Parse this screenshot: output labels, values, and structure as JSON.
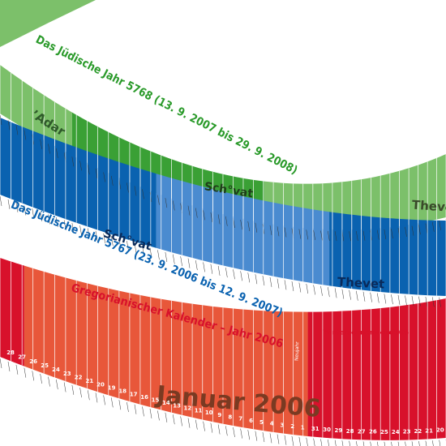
{
  "labels": {
    "jewish_5768": "Das Jüdische Jahr 5768 (13. 9. 2007 bis 29. 9. 2008)",
    "adar": "ʼAdar",
    "schvat_green": "Sch°vat",
    "thevet_green": "Thevet",
    "jewish_5767": "Das Jüdische Jahr 5767 (23. 9. 2006 bis 12. 9. 2007)",
    "schvat_blue": "Sch°vat",
    "thevet_blue": "Thevet",
    "gregorian": "Gregorianischer Kalender – Jahr 2006",
    "wintersonnenwende": "Wintersonnenwende",
    "wintersonnenwende_year": "2006",
    "januar": "Januar 2006",
    "neujahr": "Neujahr"
  },
  "january_days": [
    28,
    27,
    26,
    25,
    24,
    23,
    22,
    21,
    20,
    19,
    18,
    17,
    16,
    15,
    14,
    13,
    12,
    11,
    10,
    9,
    8,
    7,
    6,
    5,
    4,
    3,
    2,
    1
  ],
  "december_days": [
    31,
    30,
    29,
    28,
    27,
    26,
    25,
    24,
    23,
    22,
    21,
    20
  ]
}
